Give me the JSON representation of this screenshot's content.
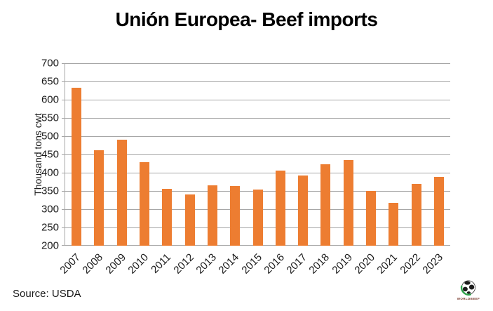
{
  "title": "Unión Europea- Beef imports",
  "source": "Source: USDA",
  "logo": {
    "text": "WORLDBEEF"
  },
  "colors": {
    "bar": "#ED7D31",
    "gridline": "#A6A6A6",
    "title_text": "#000000",
    "globe": "#1B1B1B",
    "swoosh": "#2FA24B",
    "logo_text": "#7A3B2E"
  },
  "chart_data": {
    "type": "bar",
    "title": "Unión Europea- Beef imports",
    "xlabel": "",
    "ylabel": "Thousand tons cwt",
    "categories": [
      "2007",
      "2008",
      "2009",
      "2010",
      "2011",
      "2012",
      "2013",
      "2014",
      "2015",
      "2016",
      "2017",
      "2018",
      "2019",
      "2020",
      "2021",
      "2022",
      "2023"
    ],
    "values": [
      633,
      462,
      490,
      428,
      355,
      340,
      366,
      364,
      353,
      406,
      392,
      423,
      434,
      350,
      318,
      369,
      389
    ],
    "ylim": [
      200,
      700
    ],
    "ytick_step": 50,
    "ytick_labels": [
      "700",
      "650",
      "600",
      "550",
      "500",
      "450",
      "400",
      "350",
      "300",
      "250",
      "200"
    ],
    "grid": true,
    "legend": "none",
    "bar_color": "#ED7D31"
  }
}
